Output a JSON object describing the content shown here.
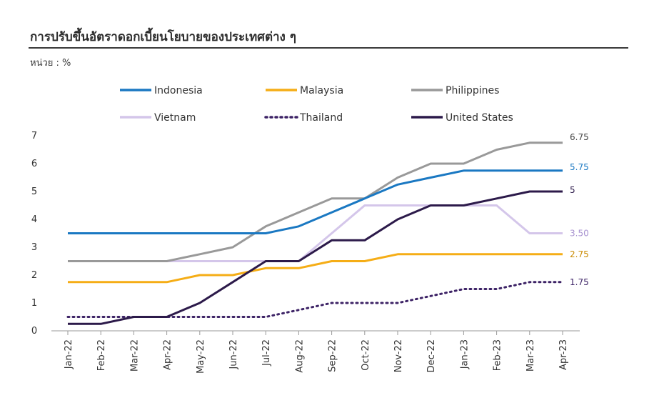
{
  "title": "การปรับขึ้นอัตราดอกเบี้ยนโยบายของประเทศต่าง ๆ",
  "unit_label": "หน่วย : %",
  "chart_data": {
    "type": "line",
    "title": "การปรับขึ้นอัตราดอกเบี้ยนโยบายของประเทศต่าง ๆ",
    "xlabel": "",
    "ylabel": "",
    "ylim": [
      0,
      7
    ],
    "yticks": [
      "0",
      "1",
      "2",
      "3",
      "4",
      "5",
      "6",
      "7"
    ],
    "grid": false,
    "legend_position": "top",
    "x": [
      "Jan-22",
      "Feb-22",
      "Mar-22",
      "Apr-22",
      "May-22",
      "Jun-22",
      "Jul-22",
      "Aug-22",
      "Sep-22",
      "Oct-22",
      "Nov-22",
      "Dec-22",
      "Jan-23",
      "Feb-23",
      "Mar-23",
      "Apr-23"
    ],
    "series": [
      {
        "name": "Indonesia",
        "color": "#1a78c2",
        "dash": "solid",
        "end_label": "5.75",
        "values": [
          3.5,
          3.5,
          3.5,
          3.5,
          3.5,
          3.5,
          3.5,
          3.75,
          4.25,
          4.75,
          5.25,
          5.5,
          5.75,
          5.75,
          5.75,
          5.75
        ]
      },
      {
        "name": "Malaysia",
        "color": "#f5ad16",
        "dash": "solid",
        "end_label": "2.75",
        "values": [
          1.75,
          1.75,
          1.75,
          1.75,
          2.0,
          2.0,
          2.25,
          2.25,
          2.5,
          2.5,
          2.75,
          2.75,
          2.75,
          2.75,
          2.75,
          2.75
        ]
      },
      {
        "name": "Philippines",
        "color": "#999999",
        "dash": "solid",
        "end_label": "6.75",
        "values": [
          2.5,
          2.5,
          2.5,
          2.5,
          2.75,
          3.0,
          3.75,
          4.25,
          4.75,
          4.75,
          5.5,
          6.0,
          6.0,
          6.5,
          6.75,
          6.75
        ]
      },
      {
        "name": "Vietnam",
        "color": "#d4c6ea",
        "dash": "solid",
        "end_label": "3.50",
        "values": [
          2.5,
          2.5,
          2.5,
          2.5,
          2.5,
          2.5,
          2.5,
          2.5,
          3.5,
          4.5,
          4.5,
          4.5,
          4.5,
          4.5,
          3.5,
          3.5
        ]
      },
      {
        "name": "Thailand",
        "color": "#3d2366",
        "dash": "dotted",
        "end_label": "1.75",
        "values": [
          0.5,
          0.5,
          0.5,
          0.5,
          0.5,
          0.5,
          0.5,
          0.75,
          1.0,
          1.0,
          1.0,
          1.25,
          1.5,
          1.5,
          1.75,
          1.75
        ]
      },
      {
        "name": "United States",
        "color": "#2c1a4a",
        "dash": "solid",
        "end_label": "5",
        "values": [
          0.25,
          0.25,
          0.5,
          0.5,
          1.0,
          1.75,
          2.5,
          2.5,
          3.25,
          3.25,
          4.0,
          4.5,
          4.5,
          4.75,
          5.0,
          5.0
        ]
      }
    ]
  }
}
